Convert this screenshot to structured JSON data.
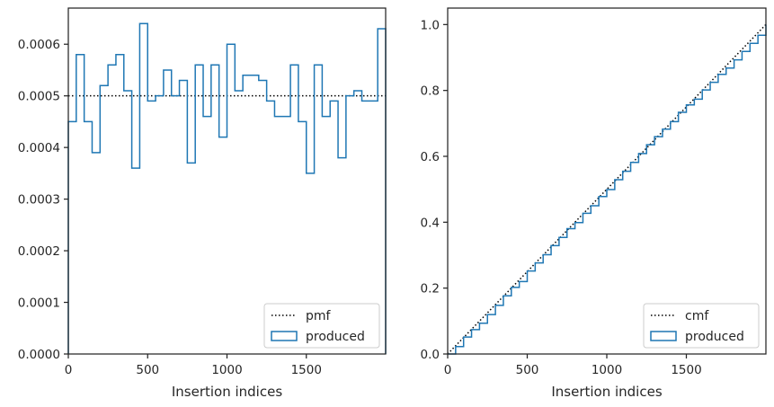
{
  "chart_data": [
    {
      "type": "step",
      "xlabel": "Insertion indices",
      "ylabel": "",
      "xlim": [
        0,
        2000
      ],
      "ylim": [
        0,
        0.00067
      ],
      "xticks": [
        0,
        500,
        1000,
        1500
      ],
      "yticks": [
        "0.0000",
        "0.0001",
        "0.0002",
        "0.0003",
        "0.0004",
        "0.0005",
        "0.0006"
      ],
      "grid": false,
      "legend_position": "lower-right",
      "series": [
        {
          "name": "pmf",
          "style": "dotted",
          "color": "#000000",
          "x": [
            0,
            2000
          ],
          "y": [
            0.0005,
            0.0005
          ]
        },
        {
          "name": "produced",
          "style": "step-histogram",
          "color": "#1f77b4",
          "bin_width": 50,
          "values": [
            0.00045,
            0.00058,
            0.00045,
            0.00039,
            0.00052,
            0.00056,
            0.00058,
            0.00051,
            0.00036,
            0.00064,
            0.00049,
            0.0005,
            0.00055,
            0.0005,
            0.00053,
            0.00037,
            0.00056,
            0.00046,
            0.00056,
            0.00042,
            0.0006,
            0.00051,
            0.00054,
            0.00054,
            0.00053,
            0.00049,
            0.00046,
            0.00046,
            0.00056,
            0.00045,
            0.00035,
            0.00056,
            0.00046,
            0.00049,
            0.00038,
            0.0005,
            0.00051,
            0.00049,
            0.00049,
            0.00063
          ]
        }
      ]
    },
    {
      "type": "step",
      "xlabel": "Insertion indices",
      "ylabel": "",
      "xlim": [
        0,
        2000
      ],
      "ylim": [
        0,
        1.05
      ],
      "xticks": [
        0,
        500,
        1000,
        1500
      ],
      "yticks": [
        "0.0",
        "0.2",
        "0.4",
        "0.6",
        "0.8",
        "1.0"
      ],
      "grid": false,
      "legend_position": "lower-right",
      "series": [
        {
          "name": "cmf",
          "style": "dotted",
          "color": "#000000",
          "x": [
            0,
            2000
          ],
          "y": [
            0,
            1
          ]
        },
        {
          "name": "produced",
          "style": "step-cumulative",
          "color": "#1f77b4",
          "x": [
            0,
            50,
            100,
            150,
            200,
            250,
            300,
            350,
            400,
            450,
            500,
            550,
            600,
            650,
            700,
            750,
            800,
            850,
            900,
            950,
            1000,
            1050,
            1100,
            1150,
            1200,
            1250,
            1300,
            1350,
            1400,
            1450,
            1500,
            1550,
            1600,
            1650,
            1700,
            1750,
            1800,
            1850,
            1900,
            1950,
            2000
          ],
          "y": [
            0,
            0.0225,
            0.0515,
            0.074,
            0.0935,
            0.1195,
            0.1475,
            0.1765,
            0.202,
            0.22,
            0.252,
            0.2765,
            0.3015,
            0.329,
            0.354,
            0.3805,
            0.399,
            0.427,
            0.45,
            0.478,
            0.499,
            0.529,
            0.5545,
            0.5815,
            0.6085,
            0.635,
            0.6595,
            0.6825,
            0.7055,
            0.7335,
            0.756,
            0.7735,
            0.8015,
            0.8245,
            0.849,
            0.868,
            0.893,
            0.9185,
            0.943,
            0.9675,
            1.0
          ]
        }
      ]
    }
  ]
}
